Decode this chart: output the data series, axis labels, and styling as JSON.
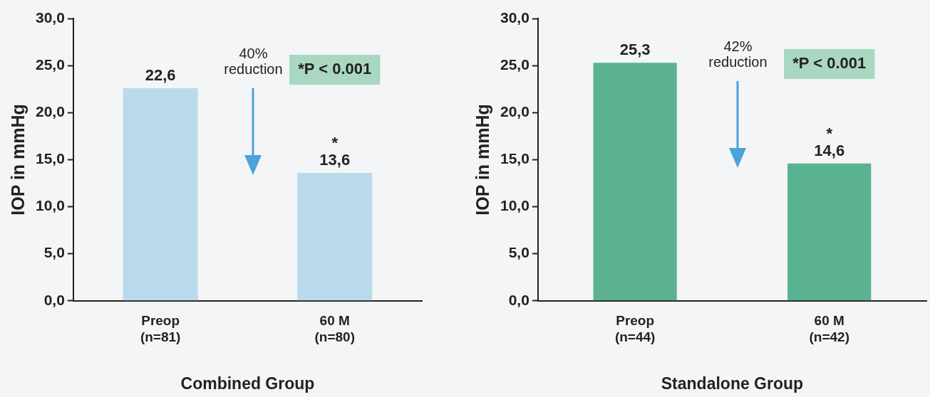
{
  "chart_data": [
    {
      "type": "bar",
      "xlabel": "Combined Group",
      "ylabel": "IOP in mmHg",
      "categories": [
        "Preop\n(n=81)",
        "60 M\n(n=80)"
      ],
      "values": [
        22.6,
        13.6
      ],
      "color": "#badaec",
      "value_labels": [
        "22,6",
        "13,6"
      ],
      "ylim": [
        0,
        30
      ],
      "yticks": [
        {
          "value": 0,
          "label": "0,0"
        },
        {
          "value": 5,
          "label": "5,0"
        },
        {
          "value": 10,
          "label": "10,0"
        },
        {
          "value": 15,
          "label": "15,0"
        },
        {
          "value": 20,
          "label": "20,0"
        },
        {
          "value": 25,
          "label": "25,0"
        },
        {
          "value": 30,
          "label": "30,0"
        }
      ],
      "grid": false,
      "legend": false,
      "annotations": [
        "40%\nreduction",
        "*P < 0.001",
        {
          "text": "*",
          "x": "60 M\n(n=80)",
          "y": 13.6
        }
      ]
    },
    {
      "type": "bar",
      "xlabel": "Standalone Group",
      "ylabel": "IOP in mmHg",
      "categories": [
        "Preop\n(n=44)",
        "60 M\n(n=42)"
      ],
      "values": [
        25.3,
        14.6
      ],
      "color": "#5bb291",
      "value_labels": [
        "25,3",
        "14,6"
      ],
      "ylim": [
        0,
        30
      ],
      "yticks": [
        {
          "value": 0,
          "label": "0,0"
        },
        {
          "value": 5,
          "label": "5,0"
        },
        {
          "value": 10,
          "label": "10,0"
        },
        {
          "value": 15,
          "label": "15,0"
        },
        {
          "value": 20,
          "label": "20,0"
        },
        {
          "value": 25,
          "label": "25,0"
        },
        {
          "value": 30,
          "label": "30,0"
        }
      ],
      "grid": false,
      "legend": false,
      "annotations": [
        "42%\nreduction",
        "*P < 0.001",
        {
          "text": "*",
          "x": "60 M\n(n=42)",
          "y": 14.6
        }
      ]
    }
  ]
}
